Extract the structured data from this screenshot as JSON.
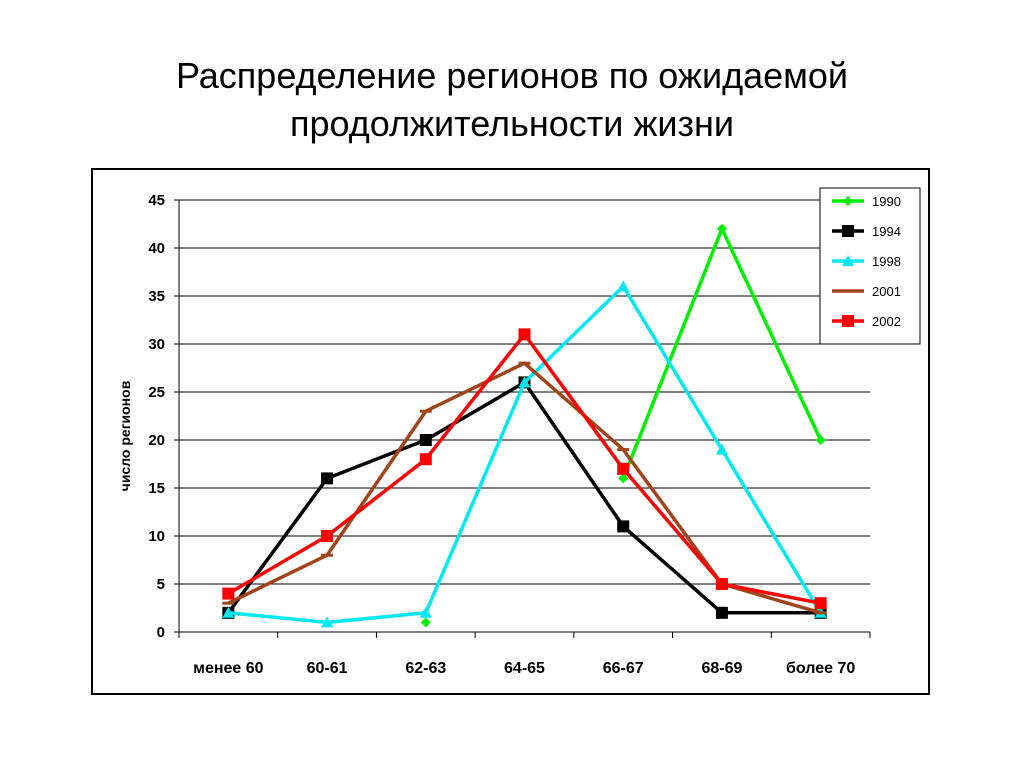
{
  "slide": {
    "title_line1": "Распределение регионов по ожидаемой",
    "title_line2": "продолжительности жизни"
  },
  "chart_data": {
    "type": "line",
    "title": "",
    "ylabel": "число регионов",
    "xlabel": "",
    "categories": [
      "менее 60",
      "60-61",
      "62-63",
      "64-65",
      "66-67",
      "68-69",
      "более 70"
    ],
    "ylim": [
      0,
      45
    ],
    "yticks": [
      0,
      5,
      10,
      15,
      20,
      25,
      30,
      35,
      40,
      45
    ],
    "grid": true,
    "legend_position": "top-right",
    "series": [
      {
        "name": "1990",
        "color": "#00ee00",
        "marker": "diamond",
        "values": [
          null,
          null,
          1,
          null,
          16,
          42,
          20
        ]
      },
      {
        "name": "1994",
        "color": "#000000",
        "marker": "square",
        "values": [
          2,
          16,
          20,
          26,
          11,
          2,
          2
        ]
      },
      {
        "name": "1998",
        "color": "#00e8f0",
        "marker": "triangle",
        "values": [
          2,
          1,
          2,
          26,
          36,
          19,
          2
        ]
      },
      {
        "name": "2001",
        "color": "#a0441a",
        "marker": "dash",
        "values": [
          3,
          8,
          23,
          28,
          19,
          5,
          2
        ]
      },
      {
        "name": "2002",
        "color": "#ff0000",
        "marker": "square",
        "values": [
          4,
          10,
          18,
          31,
          17,
          5,
          3
        ]
      }
    ]
  }
}
